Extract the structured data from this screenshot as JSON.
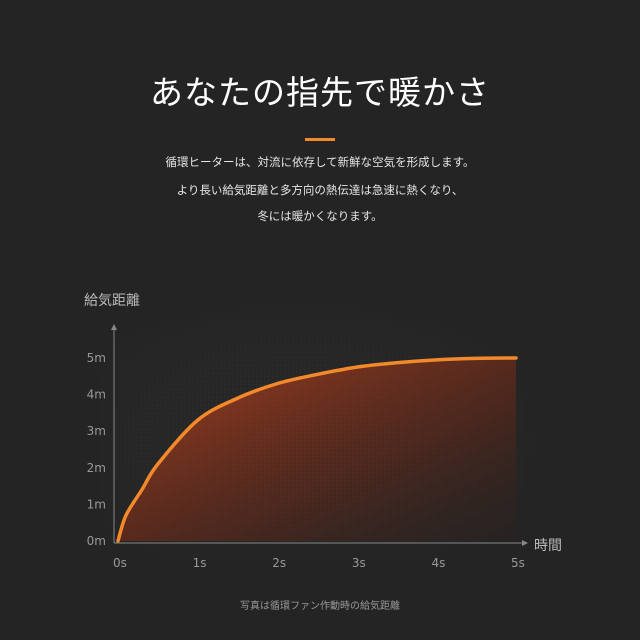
{
  "header": {
    "title": "あなたの指先で暖かさ",
    "accent_color": "#f28a2b",
    "description": [
      "循環ヒーターは、対流に依存して新鮮な空気を形成します。",
      "より長い給気距離と多方向の熱伝達は急速に熱くなり、",
      "冬には暖かくなります。"
    ]
  },
  "chart_data": {
    "type": "area",
    "title": "",
    "ylabel": "給気距離",
    "xlabel": "時間",
    "x_ticks": [
      "0s",
      "1s",
      "2s",
      "3s",
      "4s",
      "5s"
    ],
    "y_ticks": [
      "0m",
      "1m",
      "2m",
      "3m",
      "4m",
      "5m"
    ],
    "xlim": [
      0,
      5
    ],
    "ylim": [
      0,
      5
    ],
    "grid": true,
    "line_color": "#f28a2b",
    "x": [
      0,
      0.1,
      0.3,
      0.5,
      1,
      1.5,
      2,
      2.5,
      3,
      3.5,
      4,
      4.5,
      5
    ],
    "y": [
      0,
      0.7,
      1.4,
      2.1,
      3.3,
      3.9,
      4.3,
      4.55,
      4.75,
      4.87,
      4.95,
      4.99,
      5.0
    ]
  },
  "caption": "写真は循環ファン作動時の給気距離"
}
